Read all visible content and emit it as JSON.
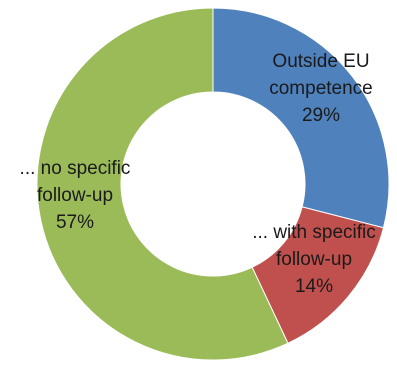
{
  "chart_data": {
    "type": "pie",
    "subtype": "donut",
    "categories": [
      "Outside EU competence",
      "... with specific follow-up",
      "... no specific follow-up"
    ],
    "values": [
      29,
      14,
      57
    ],
    "unit": "%",
    "slices": [
      {
        "name": "Outside EU competence",
        "value": 29,
        "color": "#4f81bd",
        "label_lines": [
          "Outside EU",
          "competence",
          "29%"
        ]
      },
      {
        "name": "... with specific follow-up",
        "value": 14,
        "color": "#c0504d",
        "label_lines": [
          "... with specific",
          "follow-up",
          "14%"
        ]
      },
      {
        "name": "... no specific follow-up",
        "value": 57,
        "color": "#9bbb59",
        "label_lines": [
          "... no specific",
          "follow-up",
          "57%"
        ]
      }
    ],
    "title": "",
    "legend": "none",
    "start": "top",
    "direction": "clockwise"
  }
}
